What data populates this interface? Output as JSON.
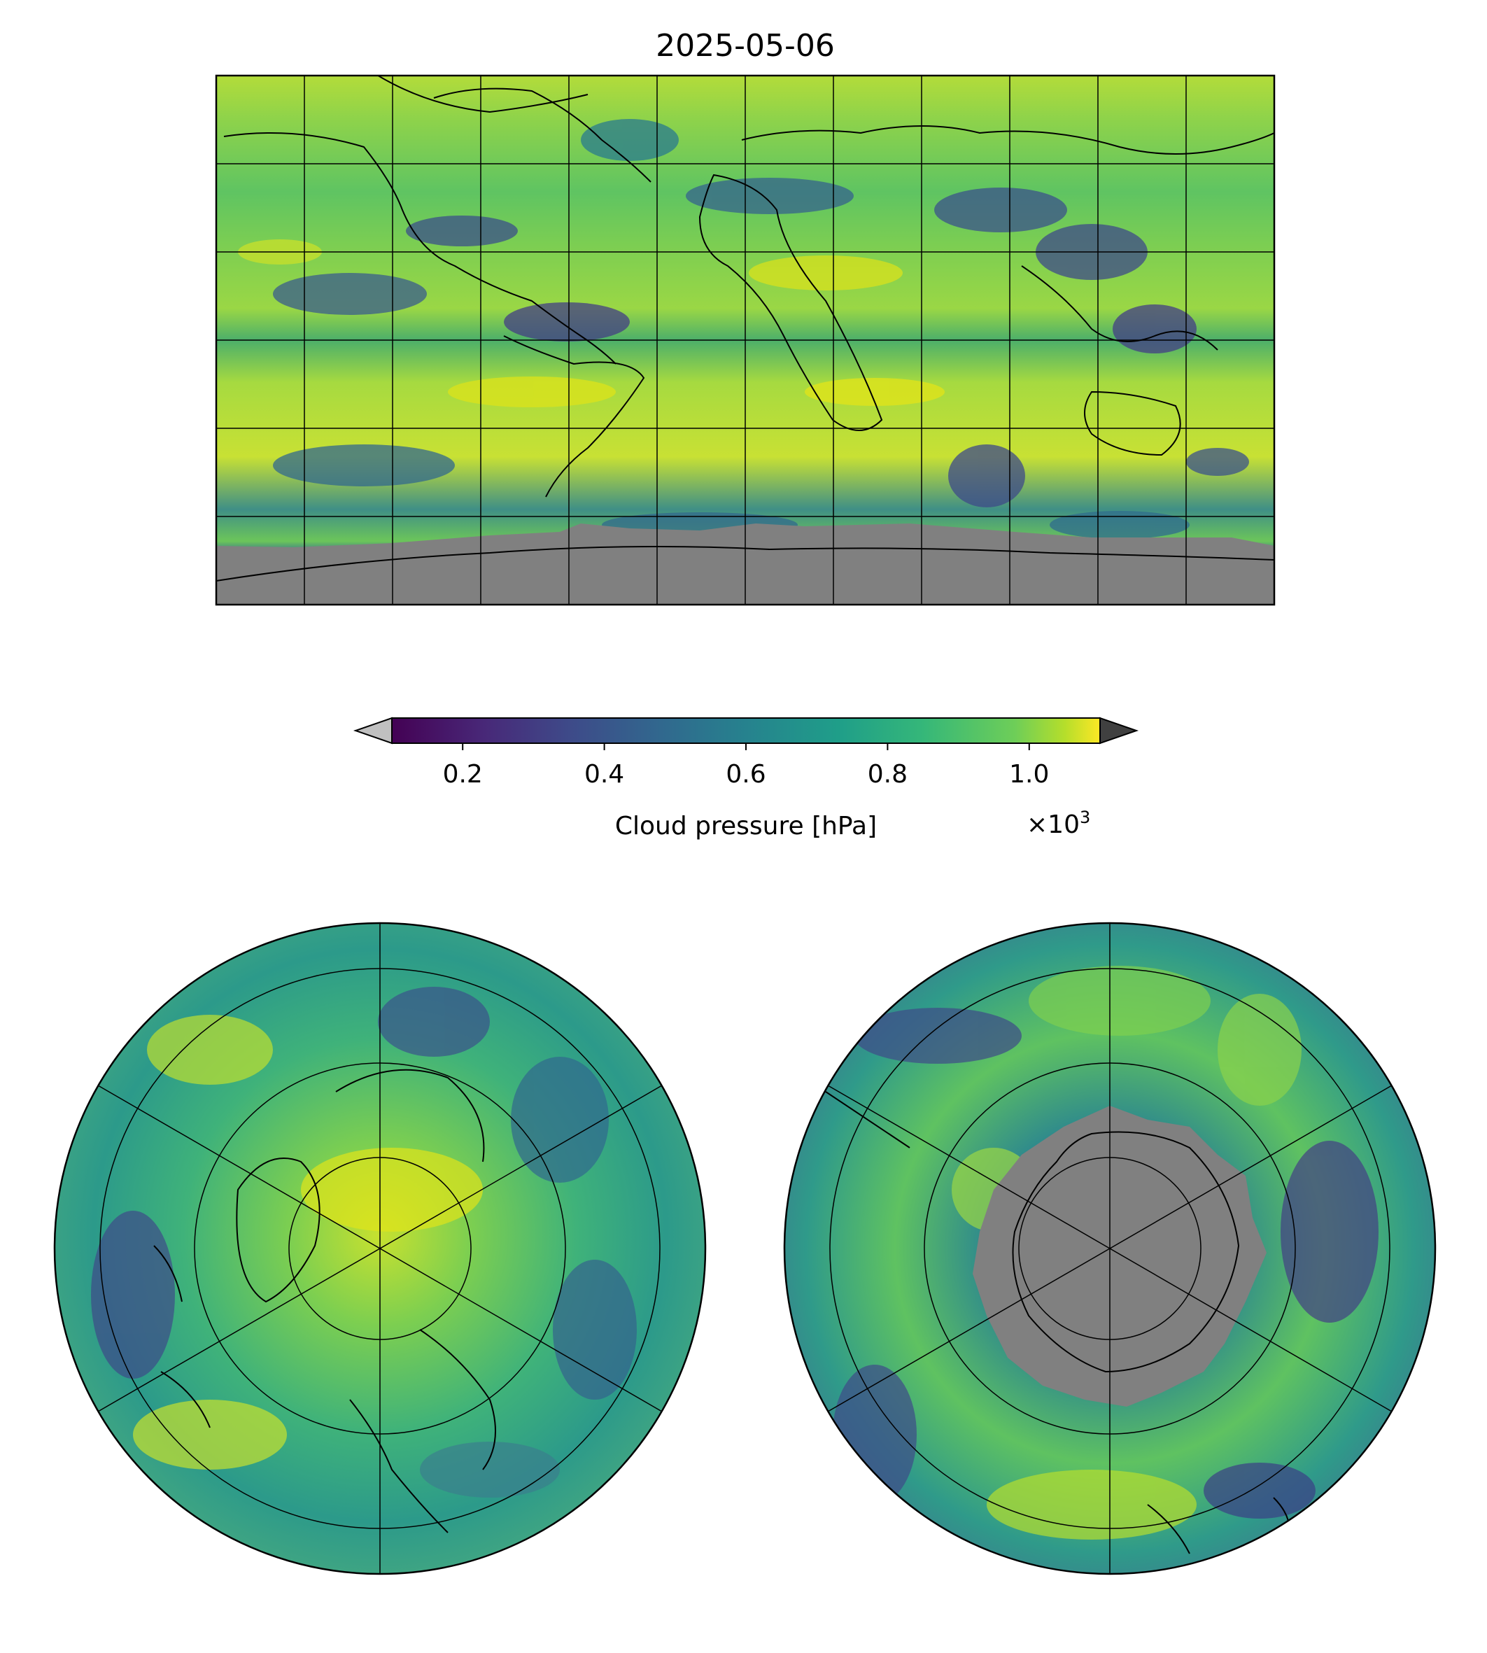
{
  "figure": {
    "title": "2025-05-06"
  },
  "colorbar": {
    "label": "Cloud pressure [hPa]",
    "ticks": [
      {
        "value": 0.2,
        "label": "0.2"
      },
      {
        "value": 0.4,
        "label": "0.4"
      },
      {
        "value": 0.6,
        "label": "0.6"
      },
      {
        "value": 0.8,
        "label": "0.8"
      },
      {
        "value": 1.0,
        "label": "1.0"
      }
    ],
    "range": [
      0.1,
      1.1
    ],
    "scale_multiplier_base": "×10",
    "scale_multiplier_exponent": "3",
    "colormap": "viridis",
    "under_color": "#c0c0c0",
    "over_color": "#404040"
  },
  "map_colors": {
    "no_data": "#808080",
    "coastline": "#000000",
    "gridline": "#000000"
  },
  "panels": {
    "global": {
      "projection": "equirectangular",
      "gridline_lon_step_deg": 30,
      "gridline_lat_step_deg": 30
    },
    "north_polar": {
      "projection": "north-polar-stereographic"
    },
    "south_polar": {
      "projection": "south-polar-stereographic"
    }
  }
}
